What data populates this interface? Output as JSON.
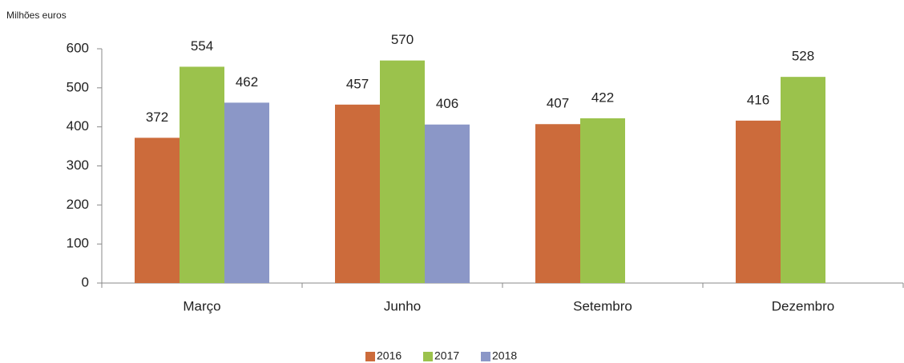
{
  "chart_data": {
    "type": "bar",
    "y_label": "Milhões euros",
    "categories": [
      "Março",
      "Junho",
      "Setembro",
      "Dezembro"
    ],
    "series": [
      {
        "name": "2016",
        "color": "#cc6b3b",
        "values": [
          372,
          457,
          407,
          416
        ]
      },
      {
        "name": "2017",
        "color": "#9bc24c",
        "values": [
          554,
          570,
          422,
          528
        ]
      },
      {
        "name": "2018",
        "color": "#8b97c7",
        "values": [
          462,
          406,
          null,
          null
        ]
      }
    ],
    "ylim": [
      0,
      600
    ],
    "yticks": [
      0,
      100,
      200,
      300,
      400,
      500,
      600
    ],
    "grid": false,
    "legend": "bottom"
  }
}
